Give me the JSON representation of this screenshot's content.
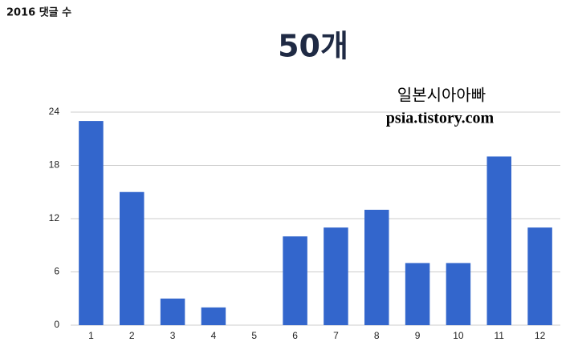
{
  "chart_data": {
    "type": "bar",
    "subtitle": "2016 댓글 수",
    "title": "50개",
    "annotations": [
      "일본시아아빠",
      "psia.tistory.com"
    ],
    "categories": [
      "1",
      "2",
      "3",
      "4",
      "5",
      "6",
      "7",
      "8",
      "9",
      "10",
      "11",
      "12"
    ],
    "values": [
      23,
      15,
      3,
      2,
      0,
      10,
      11,
      13,
      7,
      7,
      19,
      11
    ],
    "color": "#3366cc",
    "ylim": [
      0,
      24
    ],
    "yticks": [
      0,
      6,
      12,
      18,
      24
    ],
    "grid": true
  }
}
